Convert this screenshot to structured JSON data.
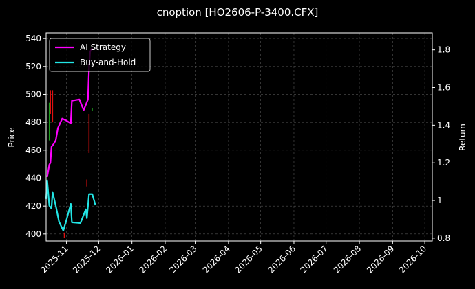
{
  "chart_data": {
    "type": "line",
    "title": "cnoption [HO2606-P-3400.CFX]",
    "ylabel": "Price",
    "y2label": "Return",
    "xlim": [
      "2025-10-13",
      "2026-10-08"
    ],
    "xticks": [
      "2025-11",
      "2025-12",
      "2026-01",
      "2026-02",
      "2026-03",
      "2026-04",
      "2026-05",
      "2026-06",
      "2026-07",
      "2026-08",
      "2026-09",
      "2026-10"
    ],
    "ylim": [
      395,
      544
    ],
    "yticks": [
      400,
      420,
      440,
      460,
      480,
      500,
      520,
      540
    ],
    "y2lim": [
      0.785,
      1.89
    ],
    "y2ticks": [
      0.8,
      1.0,
      1.2,
      1.4,
      1.6,
      1.8
    ],
    "grid": true,
    "legend": "upper left",
    "candles": {
      "up_color": "#1e9e1e",
      "down_color": "#e01010",
      "x": [
        "2025-10-16",
        "2025-10-17",
        "2025-10-19",
        "2025-10-30",
        "2025-11-20",
        "2025-11-22",
        "2025-11-25"
      ],
      "open": [
        467,
        503,
        503,
        401,
        439,
        486,
        488
      ],
      "close": [
        494,
        486,
        480,
        397,
        434,
        458,
        490
      ]
    },
    "series": [
      {
        "name": "AI Strategy",
        "color": "#ff00ff",
        "axis": "y2",
        "x": [
          "2025-10-14",
          "2025-10-16",
          "2025-10-17",
          "2025-10-18",
          "2025-10-20",
          "2025-10-22",
          "2025-10-24",
          "2025-10-28",
          "2025-11-01",
          "2025-11-05",
          "2025-11-06",
          "2025-11-13",
          "2025-11-17",
          "2025-11-21",
          "2025-11-22",
          "2025-11-23",
          "2025-11-25"
        ],
        "values": [
          1.125,
          1.19,
          1.2,
          1.285,
          1.3,
          1.32,
          1.385,
          1.435,
          1.424,
          1.41,
          1.53,
          1.537,
          1.48,
          1.537,
          1.7,
          1.79,
          1.81
        ]
      },
      {
        "name": "Buy-and-Hold",
        "color": "#22e6e6",
        "axis": "y2",
        "x": [
          "2025-10-13",
          "2025-10-14",
          "2025-10-16",
          "2025-10-18",
          "2025-10-19",
          "2025-10-22",
          "2025-10-25",
          "2025-10-29",
          "2025-11-01",
          "2025-11-05",
          "2025-11-06",
          "2025-11-14",
          "2025-11-19",
          "2025-11-20",
          "2025-11-22",
          "2025-11-25",
          "2025-11-28"
        ],
        "values": [
          1.008,
          1.107,
          0.972,
          0.957,
          1.045,
          0.972,
          0.888,
          0.84,
          0.898,
          0.982,
          0.884,
          0.88,
          0.953,
          0.906,
          1.034,
          1.034,
          0.975
        ]
      }
    ]
  }
}
